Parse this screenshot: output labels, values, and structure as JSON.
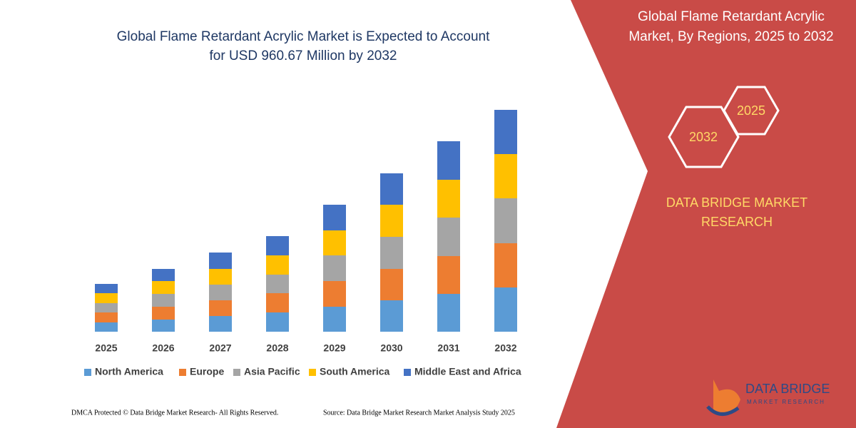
{
  "chart_data": {
    "type": "bar",
    "stacked": true,
    "title": [
      "Global Flame Retardant Acrylic Market is Expected to Account",
      "for USD 960.67 Million by 2032"
    ],
    "categories": [
      "2025",
      "2026",
      "2027",
      "2028",
      "2029",
      "2030",
      "2031",
      "2032"
    ],
    "series": [
      {
        "name": "North America",
        "color": "#5b9bd5",
        "values": [
          13,
          17,
          22,
          27,
          35,
          44,
          53,
          62
        ]
      },
      {
        "name": "Europe",
        "color": "#ed7d31",
        "values": [
          14,
          18,
          22,
          27,
          36,
          44,
          53,
          62
        ]
      },
      {
        "name": "Asia Pacific",
        "color": "#a5a5a5",
        "values": [
          13,
          18,
          22,
          26,
          36,
          45,
          54,
          63
        ]
      },
      {
        "name": "South America",
        "color": "#ffc000",
        "values": [
          14,
          18,
          22,
          27,
          35,
          45,
          53,
          62
        ]
      },
      {
        "name": "Middle East and Africa",
        "color": "#4472c4",
        "values": [
          13,
          17,
          23,
          27,
          36,
          44,
          54,
          62
        ]
      }
    ]
  },
  "panel": {
    "title": [
      "Global Flame Retardant Acrylic",
      "Market, By Regions, 2025 to 2032"
    ],
    "hex_large": "2032",
    "hex_small": "2025",
    "brand": [
      "DATA BRIDGE MARKET",
      "RESEARCH"
    ]
  },
  "logo": {
    "name": "DATA BRIDGE",
    "tagline": "MARKET RESEARCH"
  },
  "footer": {
    "left": "DMCA Protected © Data Bridge Market Research-  All Rights Reserved.",
    "right": "Source: Data Bridge Market Research  Market Analysis Study 2025"
  }
}
